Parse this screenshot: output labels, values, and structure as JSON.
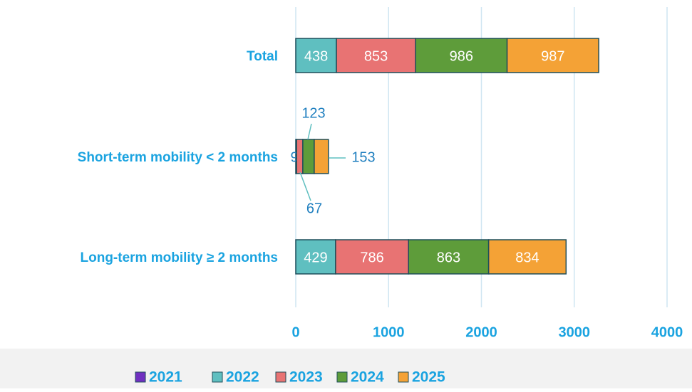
{
  "chart_data": {
    "type": "stacked-bar-horizontal",
    "categories": [
      "Total",
      "Short-term mobility < 2 months",
      "Long-term mobility ≥ 2 months"
    ],
    "series": [
      {
        "name": "2021",
        "color": "#7030c0",
        "values": [
          0,
          0,
          0
        ]
      },
      {
        "name": "2022",
        "color": "#5fbfc0",
        "values": [
          438,
          9,
          429
        ]
      },
      {
        "name": "2023",
        "color": "#e87373",
        "values": [
          853,
          67,
          786
        ]
      },
      {
        "name": "2024",
        "color": "#5e9c3a",
        "values": [
          986,
          123,
          863
        ]
      },
      {
        "name": "2025",
        "color": "#f4a236",
        "values": [
          987,
          153,
          834
        ]
      }
    ],
    "xlim": [
      0,
      4000
    ],
    "xticks": [
      0,
      1000,
      2000,
      3000,
      4000
    ],
    "grid": true,
    "legend": "bottom"
  }
}
